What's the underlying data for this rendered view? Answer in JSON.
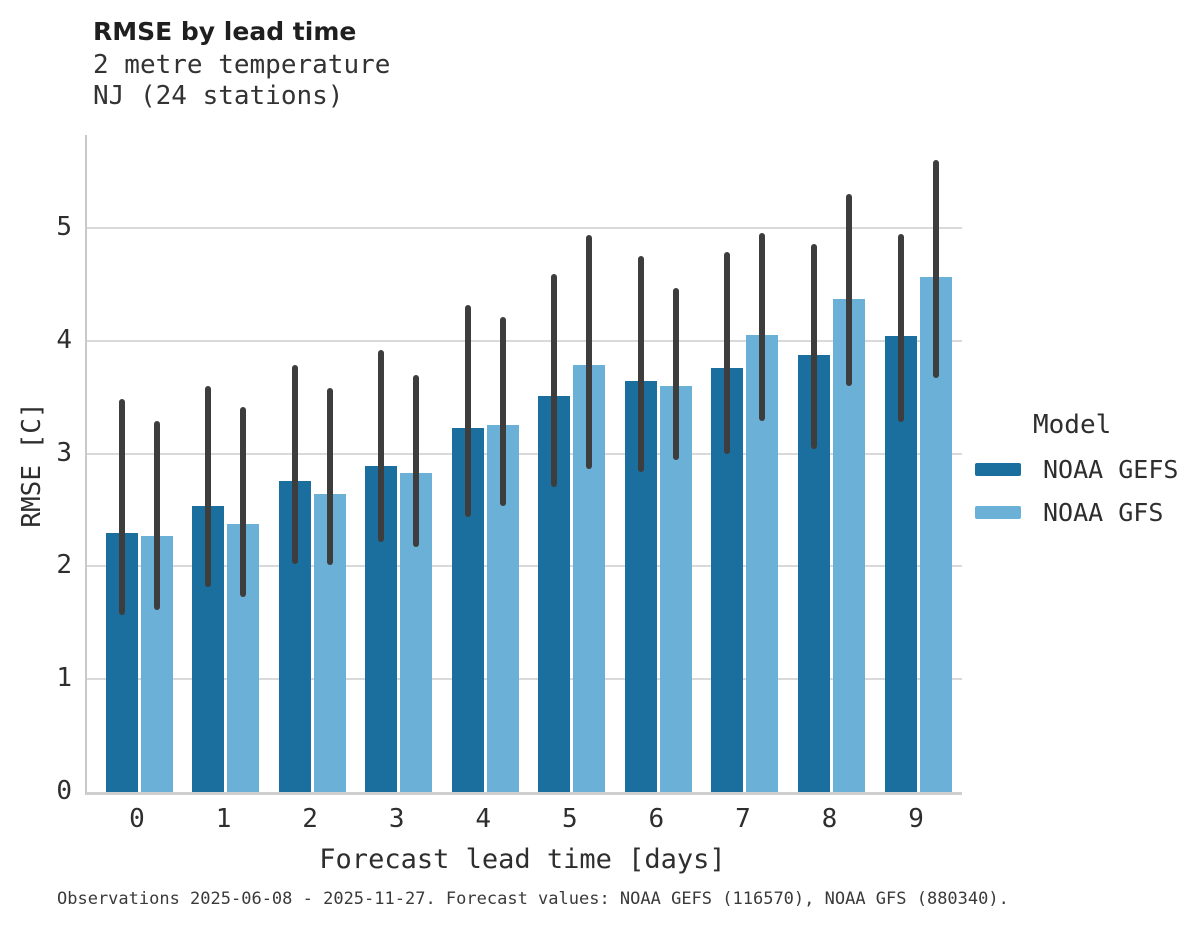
{
  "title": "RMSE by lead time",
  "subtitle_lines": [
    "2 metre temperature",
    "NJ (24 stations)"
  ],
  "footer": "Observations 2025-06-08 - 2025-11-27. Forecast values: NOAA GEFS (116570), NOAA GFS (880340).",
  "colors": {
    "gefs": "#1b6f9f",
    "gfs": "#6bb0d7",
    "error_bar": "#3d3d3d",
    "gridline": "#d9d9d9",
    "spine": "#c9c9c9",
    "text": "#2e2e2e"
  },
  "legend": {
    "title": "Model",
    "entries": [
      {
        "label": "NOAA GEFS",
        "color": "#1b6f9f"
      },
      {
        "label": "NOAA GFS",
        "color": "#6bb0d7"
      }
    ]
  },
  "chart_data": {
    "type": "bar",
    "title": "RMSE by lead time",
    "subtitle": "2 metre temperature, NJ (24 stations)",
    "xlabel": "Forecast lead time [days]",
    "ylabel": "RMSE [C]",
    "categories": [
      0,
      1,
      2,
      3,
      4,
      5,
      6,
      7,
      8,
      9
    ],
    "yticks": [
      0,
      1,
      2,
      3,
      4,
      5
    ],
    "ylim": [
      0,
      5.83
    ],
    "grid": true,
    "legend_position": "right",
    "series": [
      {
        "name": "NOAA GEFS",
        "color": "#1b6f9f",
        "values": [
          2.3,
          2.54,
          2.76,
          2.89,
          3.23,
          3.51,
          3.64,
          3.76,
          3.87,
          4.04
        ],
        "error_low": [
          1.57,
          1.82,
          2.02,
          2.22,
          2.44,
          2.7,
          2.84,
          3.0,
          3.04,
          3.28
        ],
        "error_high": [
          3.48,
          3.6,
          3.79,
          3.92,
          4.32,
          4.59,
          4.75,
          4.79,
          4.86,
          4.95
        ]
      },
      {
        "name": "NOAA GFS",
        "color": "#6bb0d7",
        "values": [
          2.27,
          2.38,
          2.64,
          2.83,
          3.25,
          3.79,
          3.6,
          4.05,
          4.37,
          4.57
        ],
        "error_low": [
          1.61,
          1.73,
          2.01,
          2.17,
          2.54,
          2.86,
          2.94,
          3.29,
          3.6,
          3.67
        ],
        "error_high": [
          3.29,
          3.41,
          3.58,
          3.7,
          4.21,
          4.94,
          4.47,
          4.96,
          5.3,
          5.6
        ]
      }
    ]
  }
}
